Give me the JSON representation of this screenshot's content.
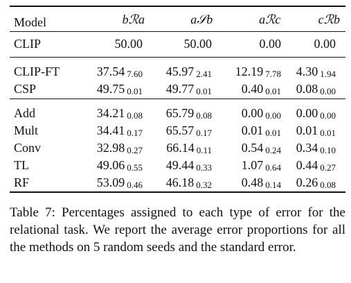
{
  "table": {
    "columns": [
      "Model",
      "bℛa",
      "a𝒮b",
      "aℛc",
      "cℛb"
    ],
    "groups": [
      [
        {
          "model": "CLIP",
          "cells": [
            {
              "v": "50.00",
              "se": ""
            },
            {
              "v": "50.00",
              "se": ""
            },
            {
              "v": "0.00",
              "se": ""
            },
            {
              "v": "0.00",
              "se": ""
            }
          ]
        }
      ],
      [
        {
          "model": "CLIP-FT",
          "cells": [
            {
              "v": "37.54",
              "se": "7.60"
            },
            {
              "v": "45.97",
              "se": "2.41"
            },
            {
              "v": "12.19",
              "se": "7.78"
            },
            {
              "v": "4.30",
              "se": "1.94"
            }
          ]
        },
        {
          "model": "CSP",
          "cells": [
            {
              "v": "49.75",
              "se": "0.01"
            },
            {
              "v": "49.77",
              "se": "0.01"
            },
            {
              "v": "0.40",
              "se": "0.01"
            },
            {
              "v": "0.08",
              "se": "0.00"
            }
          ]
        }
      ],
      [
        {
          "model": "Add",
          "cells": [
            {
              "v": "34.21",
              "se": "0.08"
            },
            {
              "v": "65.79",
              "se": "0.08"
            },
            {
              "v": "0.00",
              "se": "0.00"
            },
            {
              "v": "0.00",
              "se": "0.00"
            }
          ]
        },
        {
          "model": "Mult",
          "cells": [
            {
              "v": "34.41",
              "se": "0.17"
            },
            {
              "v": "65.57",
              "se": "0.17"
            },
            {
              "v": "0.01",
              "se": "0.01"
            },
            {
              "v": "0.01",
              "se": "0.01"
            }
          ]
        },
        {
          "model": "Conv",
          "cells": [
            {
              "v": "32.98",
              "se": "0.27"
            },
            {
              "v": "66.14",
              "se": "0.11"
            },
            {
              "v": "0.54",
              "se": "0.24"
            },
            {
              "v": "0.34",
              "se": "0.10"
            }
          ]
        },
        {
          "model": "TL",
          "cells": [
            {
              "v": "49.06",
              "se": "0.55"
            },
            {
              "v": "49.44",
              "se": "0.33"
            },
            {
              "v": "1.07",
              "se": "0.64"
            },
            {
              "v": "0.44",
              "se": "0.27"
            }
          ]
        },
        {
          "model": "RF",
          "cells": [
            {
              "v": "53.09",
              "se": "0.46"
            },
            {
              "v": "46.18",
              "se": "0.32"
            },
            {
              "v": "0.48",
              "se": "0.14"
            },
            {
              "v": "0.26",
              "se": "0.08"
            }
          ]
        }
      ]
    ]
  },
  "caption": {
    "label": "Table 7:",
    "text": "Percentages assigned to each type of error for the relational task. We report the average error proportions for all the methods on 5 random seeds and the standard error."
  }
}
